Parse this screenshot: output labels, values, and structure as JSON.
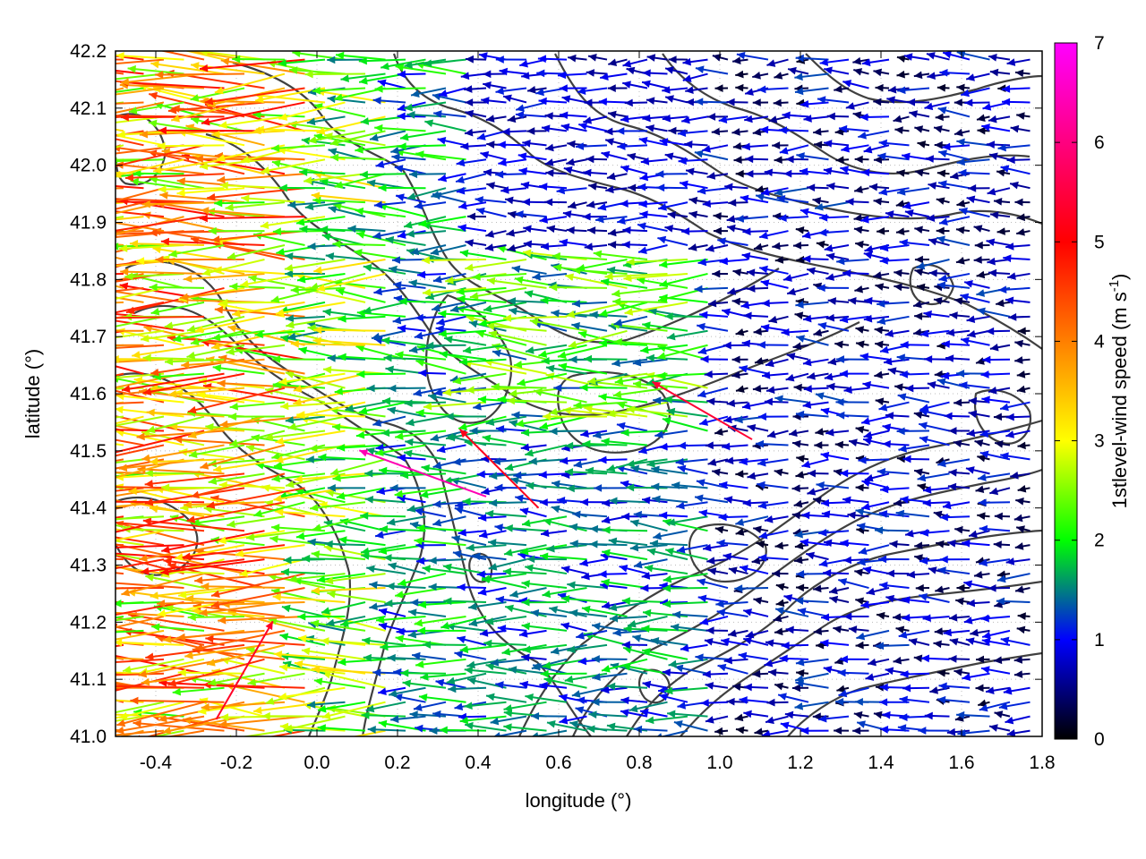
{
  "chart_data": {
    "type": "vector-field",
    "xlabel": "longitude (°)",
    "ylabel": "latitude (°)",
    "xlim": [
      -0.5,
      1.8
    ],
    "ylim": [
      41.0,
      42.2
    ],
    "xticks": [
      "-0.4",
      "-0.2",
      "0.0",
      "0.2",
      "0.4",
      "0.6",
      "0.8",
      "1.0",
      "1.2",
      "1.4",
      "1.6",
      "1.8"
    ],
    "xtick_values": [
      -0.4,
      -0.2,
      0.0,
      0.2,
      0.4,
      0.6,
      0.8,
      1.0,
      1.2,
      1.4,
      1.6,
      1.8
    ],
    "yticks": [
      "41.0",
      "41.1",
      "41.2",
      "41.3",
      "41.4",
      "41.5",
      "41.6",
      "41.7",
      "41.8",
      "41.9",
      "42.0",
      "42.1",
      "42.2"
    ],
    "ytick_values": [
      41.0,
      41.1,
      41.2,
      41.3,
      41.4,
      41.5,
      41.6,
      41.7,
      41.8,
      41.9,
      42.0,
      42.1,
      42.2
    ],
    "grid": true,
    "colorbar": {
      "label": "1stlevel-wind speed (m s",
      "label_sup": "-1",
      "label_end": ")",
      "range": [
        0,
        7
      ],
      "ticks": [
        "0",
        "1",
        "2",
        "3",
        "4",
        "5",
        "6",
        "7"
      ],
      "tick_values": [
        0,
        1,
        2,
        3,
        4,
        5,
        6,
        7
      ],
      "colors": [
        "#000000",
        "#0000ff",
        "#00ff00",
        "#ffff00",
        "#ff7f00",
        "#ff0000",
        "#ff00ff"
      ]
    },
    "grid_spacing": {
      "dlon": 0.05,
      "dlat": 0.025
    },
    "wind_field_description": "predominantly easterly (westward-pointing) flow; strongest 3-5 m/s in western part, weak 0-1.5 m/s in east",
    "wind_speed_regions": [
      {
        "lon_range": [
          -0.5,
          0.0
        ],
        "lat_range": [
          41.0,
          42.2
        ],
        "speed": 3.8
      },
      {
        "lon_range": [
          0.0,
          0.2
        ],
        "lat_range": [
          41.0,
          42.2
        ],
        "speed": 2.6
      },
      {
        "lon_range": [
          0.2,
          0.4
        ],
        "lat_range": [
          41.0,
          42.2
        ],
        "speed": 1.7
      },
      {
        "lon_range": [
          0.4,
          1.1
        ],
        "lat_range": [
          41.55,
          41.85
        ],
        "speed": 2.2
      },
      {
        "lon_range": [
          0.4,
          1.0
        ],
        "lat_range": [
          41.0,
          41.55
        ],
        "speed": 1.5
      },
      {
        "lon_range": [
          1.0,
          1.8
        ],
        "lat_range": [
          41.0,
          42.2
        ],
        "speed": 1.0
      }
    ],
    "max_wind_samples": [
      {
        "lon": 0.42,
        "lat": 41.42,
        "speed": 6.4,
        "dir_deg": 160
      },
      {
        "lon": 0.55,
        "lat": 41.4,
        "speed": 5.2,
        "dir_deg": 135
      },
      {
        "lon": 1.08,
        "lat": 41.52,
        "speed": 5.4,
        "dir_deg": 150
      },
      {
        "lon": -0.25,
        "lat": 41.03,
        "speed": 5.3,
        "dir_deg": 60
      }
    ],
    "contours": "terrain elevation isolines (dark gray)"
  }
}
